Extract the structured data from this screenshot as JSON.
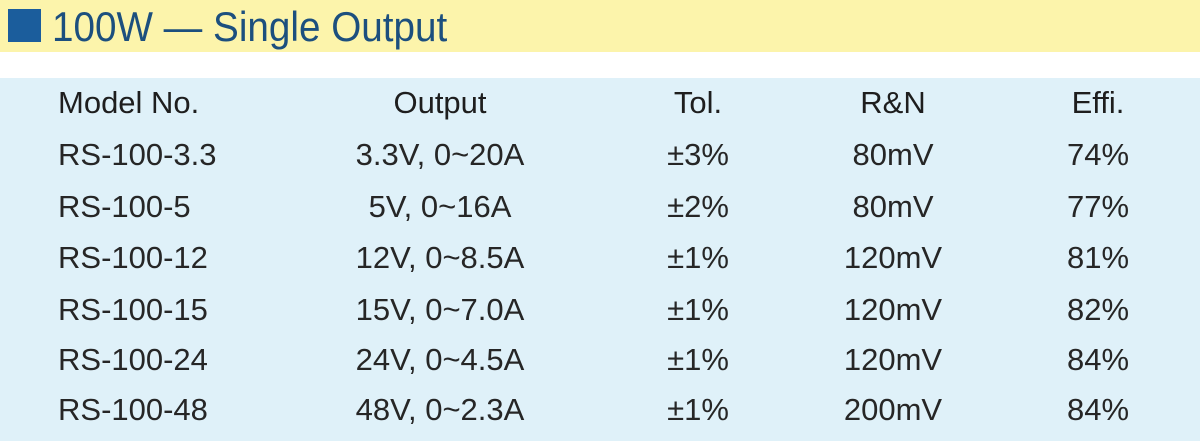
{
  "header": {
    "title": "100W — Single Output"
  },
  "table": {
    "columns": [
      "Model No.",
      "Output",
      "Tol.",
      "R&N",
      "Effi."
    ],
    "rows": [
      [
        "RS-100-3.3",
        "3.3V, 0~20A",
        "±3%",
        "80mV",
        "74%"
      ],
      [
        "RS-100-5",
        "5V, 0~16A",
        "±2%",
        "80mV",
        "77%"
      ],
      [
        "RS-100-12",
        "12V, 0~8.5A",
        "±1%",
        "120mV",
        "81%"
      ],
      [
        "RS-100-15",
        "15V, 0~7.0A",
        "±1%",
        "120mV",
        "82%"
      ],
      [
        "RS-100-24",
        "24V, 0~4.5A",
        "±1%",
        "120mV",
        "84%"
      ],
      [
        "RS-100-48",
        "48V, 0~2.3A",
        "±1%",
        "200mV",
        "84%"
      ]
    ]
  }
}
